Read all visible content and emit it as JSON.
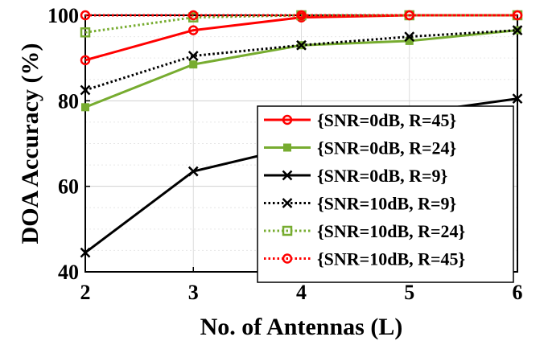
{
  "chart_data": {
    "type": "line",
    "xlabel": "No. of Antennas (L)",
    "ylabel": "DOA Accuracy (%)",
    "x": [
      2,
      3,
      4,
      5,
      6
    ],
    "xlim": [
      2,
      6
    ],
    "ylim": [
      40,
      100
    ],
    "xticks": [
      "2",
      "3",
      "4",
      "5",
      "6"
    ],
    "yticks": [
      "40",
      "60",
      "80",
      "100"
    ],
    "grid": true,
    "legend_position": "bottom-right",
    "series": [
      {
        "name": "{SNR=0dB, R=45}",
        "values": [
          89.5,
          96.5,
          99.5,
          100,
          100
        ],
        "color": "#ff0000",
        "line": "solid",
        "marker": "circle"
      },
      {
        "name": "{SNR=0dB, R=24}",
        "values": [
          78.5,
          88.5,
          93,
          94,
          96.5
        ],
        "color": "#77ac30",
        "line": "solid",
        "marker": "square-filled"
      },
      {
        "name": "{SNR=0dB, R=9}",
        "values": [
          44.5,
          63.5,
          69.5,
          77,
          80.5
        ],
        "color": "#000000",
        "line": "solid",
        "marker": "x"
      },
      {
        "name": "{SNR=10dB, R=9}",
        "values": [
          82.5,
          90.5,
          93,
          95,
          96.5
        ],
        "color": "#000000",
        "line": "dotted",
        "marker": "x"
      },
      {
        "name": "{SNR=10dB, R=24}",
        "values": [
          96,
          99.5,
          100,
          100,
          100
        ],
        "color": "#77ac30",
        "line": "dotted",
        "marker": "square"
      },
      {
        "name": "{SNR=10dB, R=45}",
        "values": [
          100,
          100,
          100,
          100,
          100
        ],
        "color": "#ff0000",
        "line": "dotted",
        "marker": "circle"
      }
    ]
  }
}
